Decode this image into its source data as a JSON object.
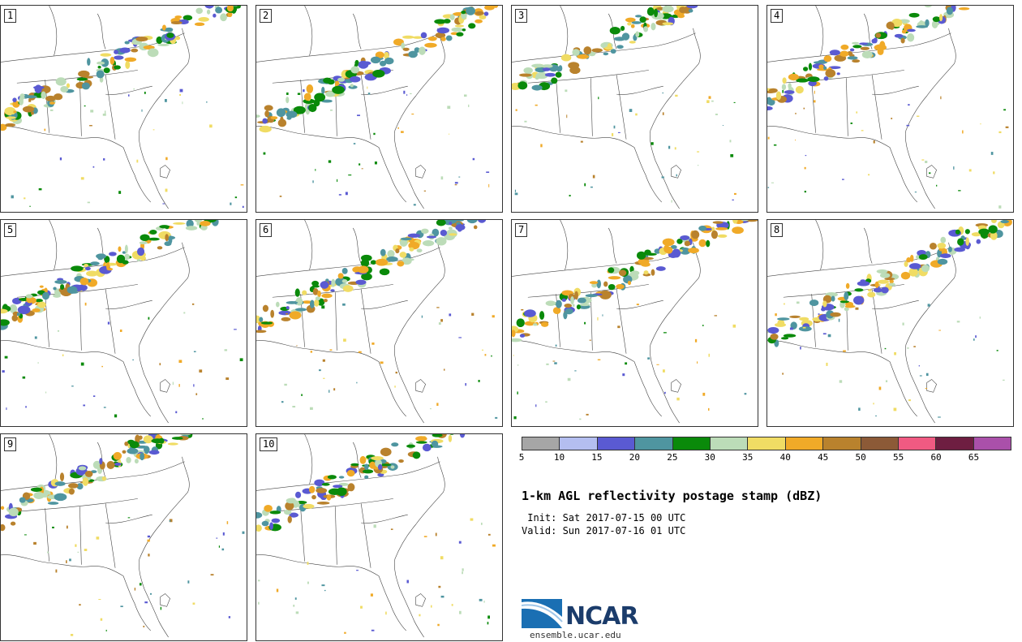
{
  "panels": [
    {
      "label": "1"
    },
    {
      "label": "2"
    },
    {
      "label": "3"
    },
    {
      "label": "4"
    },
    {
      "label": "5"
    },
    {
      "label": "6"
    },
    {
      "label": "7"
    },
    {
      "label": "8"
    },
    {
      "label": "9"
    },
    {
      "label": "10"
    }
  ],
  "legend": {
    "colors": [
      "#a6a6a6",
      "#b4bef0",
      "#5a5ad2",
      "#4f95a0",
      "#0a8a0a",
      "#bcdcb8",
      "#f0dc64",
      "#f0aa28",
      "#b9822d",
      "#8c5a37",
      "#f05a82",
      "#6e1e41",
      "#aa50aa"
    ],
    "ticks": [
      "5",
      "10",
      "15",
      "20",
      "25",
      "30",
      "35",
      "40",
      "45",
      "50",
      "55",
      "60",
      "65"
    ]
  },
  "title": "1-km AGL reflectivity postage stamp (dBZ)",
  "init": " Init: Sat 2017-07-15 00 UTC",
  "valid": "Valid: Sun 2017-07-16 01 UTC",
  "logo": {
    "name": "NCAR",
    "url": "ensemble.ucar.edu"
  }
}
